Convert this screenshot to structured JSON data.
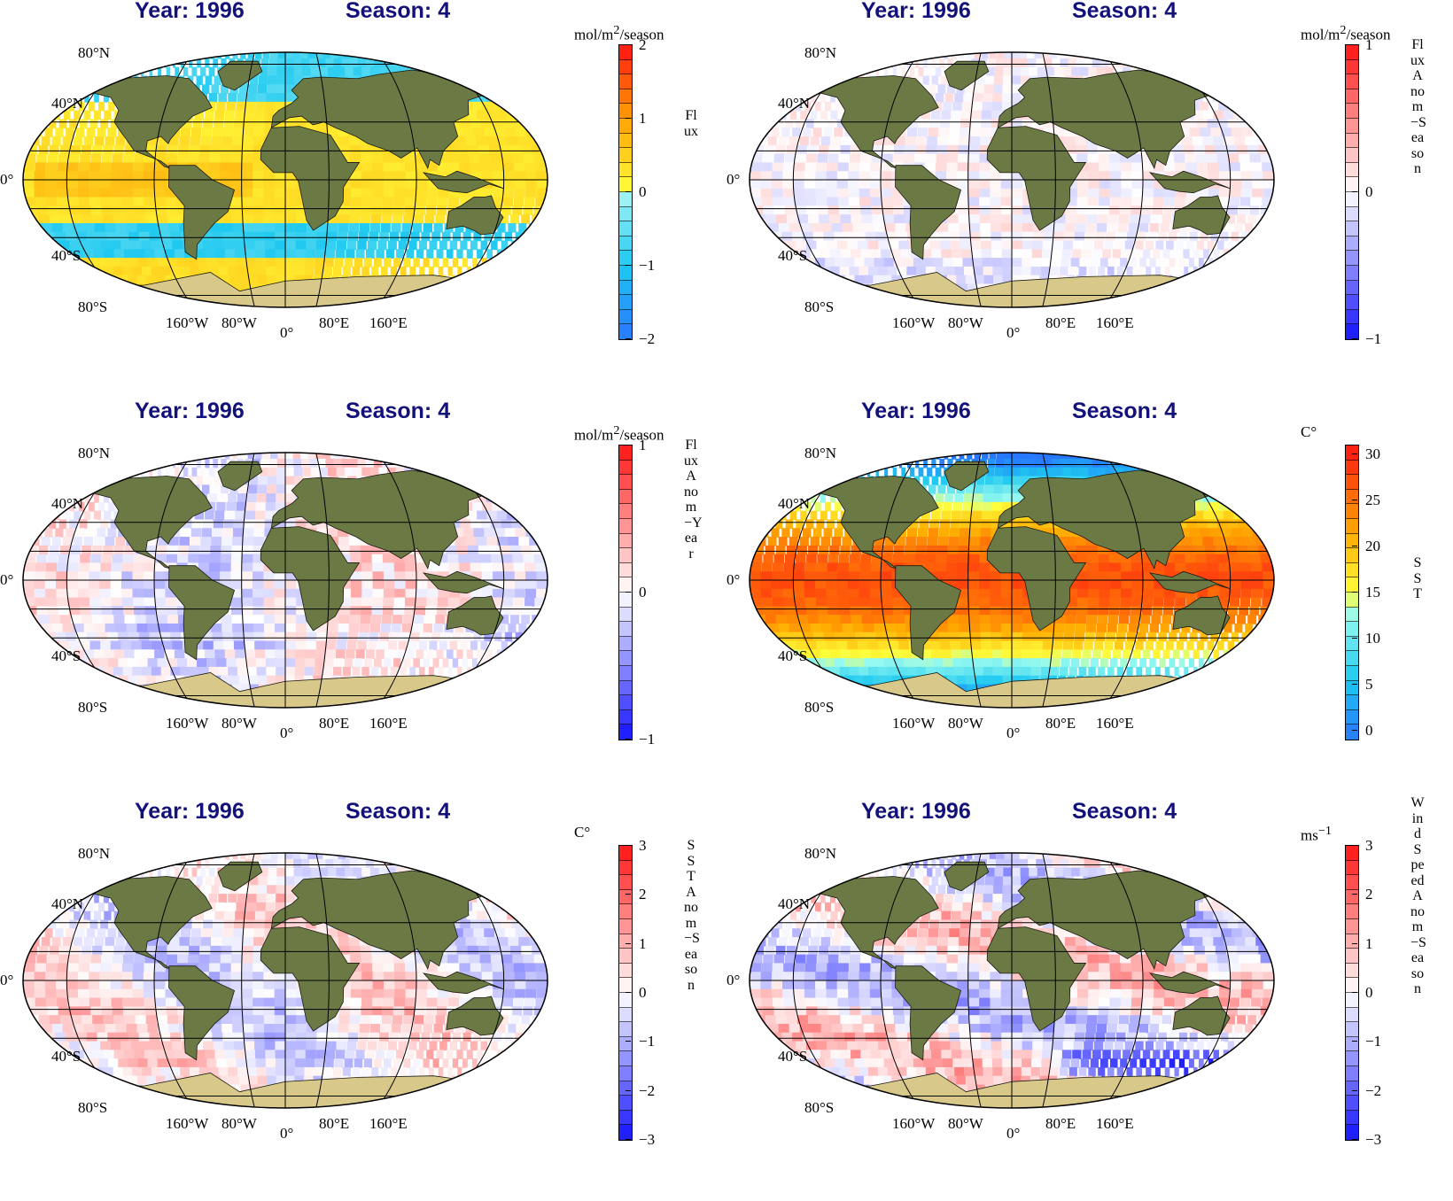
{
  "panels": [
    {
      "year_title": "Year: 1996",
      "season_title": "Season: 4",
      "unit_html": "mol/m<sup>2</sup>/season",
      "vertical_label": "Flux",
      "colorbar": {
        "min": -2,
        "max": 2,
        "ticks": [
          "2",
          "1",
          "0",
          "−1",
          "−2"
        ],
        "palette": "flux"
      },
      "field": "flux"
    },
    {
      "year_title": "Year: 1996",
      "season_title": "Season: 4",
      "unit_html": "mol/m<sup>2</sup>/season",
      "vertical_label": "Flux Anom−Season",
      "colorbar": {
        "min": -1,
        "max": 1,
        "ticks": [
          "1",
          "0",
          "−1"
        ],
        "palette": "diverging"
      },
      "field": "flux_anom_season"
    },
    {
      "year_title": "Year: 1996",
      "season_title": "Season: 4",
      "unit_html": "mol/m<sup>2</sup>/season",
      "vertical_label": "Flux Anom−Year",
      "colorbar": {
        "min": -1,
        "max": 1,
        "ticks": [
          "1",
          "0",
          "−1"
        ],
        "palette": "diverging"
      },
      "field": "flux_anom_year"
    },
    {
      "year_title": "Year: 1996",
      "season_title": "Season: 4",
      "unit_html": "C°",
      "vertical_label": "SST",
      "colorbar": {
        "min": -1,
        "max": 31,
        "ticks": [
          "30",
          "25",
          "20",
          "15",
          "10",
          "5",
          "0"
        ],
        "palette": "sst"
      },
      "field": "sst"
    },
    {
      "year_title": "Year: 1996",
      "season_title": "Season: 4",
      "unit_html": "C°",
      "vertical_label": "SST Anom−Season",
      "colorbar": {
        "min": -3,
        "max": 3,
        "ticks": [
          "3",
          "2",
          "1",
          "0",
          "−1",
          "−2",
          "−3"
        ],
        "palette": "diverging"
      },
      "field": "sst_anom"
    },
    {
      "year_title": "Year: 1996",
      "season_title": "Season: 4",
      "unit_html": "ms<sup>−1</sup>",
      "vertical_label": "Wind Speed Anom−Season",
      "colorbar": {
        "min": -3,
        "max": 3,
        "ticks": [
          "3",
          "2",
          "1",
          "0",
          "−1",
          "−2",
          "−3"
        ],
        "palette": "diverging"
      },
      "field": "wind_anom"
    }
  ],
  "lat_labels": [
    "80°N",
    "40°N",
    "0°",
    "40°S",
    "80°S"
  ],
  "lon_labels": [
    "160°W",
    "80°W",
    "0°",
    "80°E",
    "160°E"
  ],
  "colors": {
    "title": "#12127a",
    "land": "#6b7a45",
    "antarctica": "#d8c98a"
  }
}
